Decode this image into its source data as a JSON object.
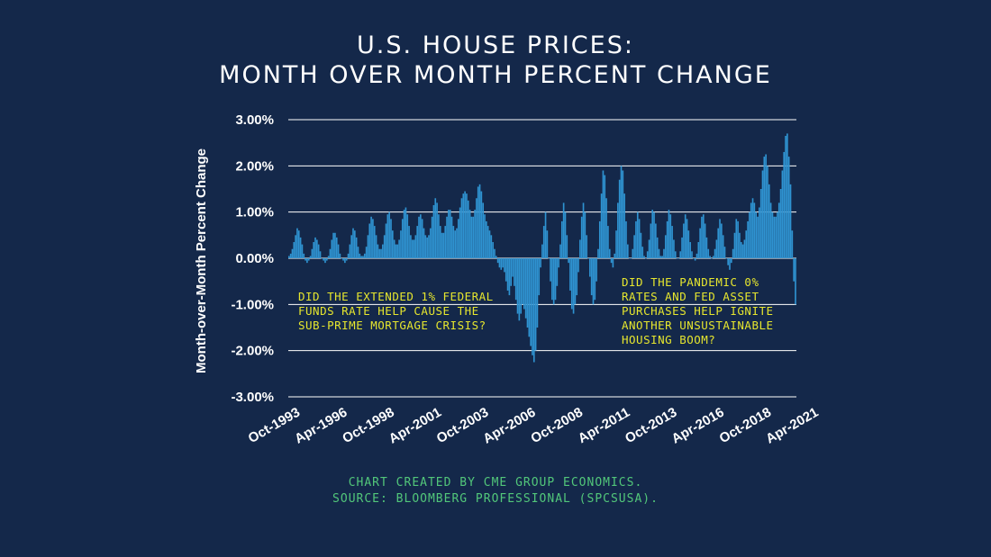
{
  "header": {
    "title_line1": "U.S. HOUSE PRICES:",
    "title_line2": "MONTH OVER MONTH PERCENT CHANGE"
  },
  "footer": {
    "credit_line1": "CHART CREATED BY CME GROUP ECONOMICS.",
    "credit_line2": "SOURCE: BLOOMBERG PROFESSIONAL (SPCSUSA)."
  },
  "colors": {
    "background": "#14284a",
    "bar": "#2f93d1",
    "grid": "#ffffff",
    "annotation": "#e6e62e",
    "credit": "#52c77a"
  },
  "chart_data": {
    "type": "bar",
    "title": "U.S. HOUSE PRICES: MONTH OVER MONTH PERCENT CHANGE",
    "xlabel": "",
    "ylabel": "Month-over-Month Percent Change",
    "ylim": [
      -3.0,
      3.0
    ],
    "y_ticks": [
      "3.00%",
      "2.00%",
      "1.00%",
      "0.00%",
      "-1.00%",
      "-2.00%",
      "-3.00%"
    ],
    "y_tick_values": [
      3,
      2,
      1,
      0,
      -1,
      -2,
      -3
    ],
    "x_tick_labels": [
      "Oct-1993",
      "Apr-1996",
      "Oct-1998",
      "Apr-2001",
      "Oct-2003",
      "Apr-2006",
      "Oct-2008",
      "Apr-2011",
      "Oct-2013",
      "Apr-2016",
      "Oct-2018",
      "Apr-2021"
    ],
    "x_start": "Oct-1993",
    "x_end": "Jan-2023",
    "grid": true,
    "legend": "none",
    "series": [
      {
        "values": [
          0.05,
          0.1,
          0.2,
          0.35,
          0.5,
          0.65,
          0.6,
          0.45,
          0.3,
          0.1,
          -0.05,
          -0.1,
          -0.05,
          0.05,
          0.2,
          0.35,
          0.45,
          0.4,
          0.3,
          0.15,
          0.0,
          -0.05,
          -0.1,
          -0.05,
          0.05,
          0.2,
          0.4,
          0.55,
          0.55,
          0.45,
          0.3,
          0.1,
          0.0,
          -0.05,
          -0.1,
          -0.05,
          0.1,
          0.3,
          0.5,
          0.65,
          0.6,
          0.45,
          0.25,
          0.1,
          0.05,
          0.05,
          0.1,
          0.25,
          0.5,
          0.75,
          0.9,
          0.85,
          0.7,
          0.5,
          0.3,
          0.2,
          0.2,
          0.3,
          0.5,
          0.75,
          0.95,
          1.0,
          0.85,
          0.6,
          0.4,
          0.3,
          0.3,
          0.4,
          0.6,
          0.85,
          1.05,
          1.1,
          0.95,
          0.7,
          0.5,
          0.4,
          0.4,
          0.5,
          0.7,
          0.9,
          0.95,
          0.85,
          0.65,
          0.5,
          0.45,
          0.5,
          0.65,
          0.9,
          1.15,
          1.3,
          1.2,
          0.95,
          0.7,
          0.55,
          0.55,
          0.7,
          0.9,
          1.05,
          1.05,
          0.9,
          0.7,
          0.6,
          0.65,
          0.85,
          1.1,
          1.3,
          1.4,
          1.45,
          1.4,
          1.25,
          1.05,
          0.9,
          0.9,
          1.05,
          1.3,
          1.55,
          1.6,
          1.45,
          1.2,
          0.95,
          0.8,
          0.7,
          0.6,
          0.5,
          0.35,
          0.2,
          0.05,
          -0.1,
          -0.2,
          -0.25,
          -0.2,
          -0.3,
          -0.5,
          -0.7,
          -0.8,
          -0.6,
          -0.4,
          -0.6,
          -0.9,
          -1.2,
          -1.35,
          -1.2,
          -1.0,
          -1.1,
          -1.3,
          -1.5,
          -1.7,
          -1.9,
          -2.1,
          -2.25,
          -2.0,
          -1.5,
          -0.8,
          -0.2,
          0.3,
          0.7,
          1.0,
          0.6,
          0.0,
          -0.5,
          -0.9,
          -1.0,
          -0.9,
          -0.6,
          -0.2,
          0.3,
          0.8,
          1.2,
          1.0,
          0.5,
          -0.1,
          -0.7,
          -1.1,
          -1.2,
          -1.0,
          -0.8,
          -0.3,
          0.4,
          0.9,
          1.2,
          1.0,
          0.5,
          0.0,
          -0.4,
          -0.8,
          -1.0,
          -0.9,
          -0.5,
          0.2,
          0.8,
          1.4,
          1.9,
          1.8,
          1.3,
          0.7,
          0.2,
          -0.1,
          -0.2,
          0.1,
          0.6,
          1.2,
          1.7,
          2.0,
          1.9,
          1.4,
          0.8,
          0.3,
          0.0,
          0.0,
          0.2,
          0.5,
          0.8,
          1.0,
          0.85,
          0.55,
          0.25,
          0.05,
          0.0,
          0.15,
          0.4,
          0.75,
          1.05,
          1.0,
          0.75,
          0.45,
          0.2,
          0.05,
          0.05,
          0.2,
          0.5,
          0.8,
          1.05,
          0.95,
          0.7,
          0.4,
          0.15,
          0.0,
          0.0,
          0.15,
          0.45,
          0.75,
          0.95,
          0.85,
          0.6,
          0.35,
          0.15,
          0.0,
          -0.05,
          0.1,
          0.35,
          0.65,
          0.9,
          0.95,
          0.75,
          0.45,
          0.2,
          0.05,
          0.0,
          0.05,
          0.2,
          0.4,
          0.65,
          0.85,
          0.75,
          0.5,
          0.25,
          0.0,
          -0.15,
          -0.25,
          -0.1,
          0.2,
          0.55,
          0.85,
          0.8,
          0.55,
          0.35,
          0.3,
          0.4,
          0.6,
          0.8,
          1.0,
          1.2,
          1.3,
          1.2,
          1.0,
          0.9,
          1.1,
          1.5,
          1.9,
          2.2,
          2.25,
          2.0,
          1.6,
          1.2,
          1.0,
          0.9,
          0.9,
          1.0,
          1.2,
          1.5,
          1.9,
          2.3,
          2.65,
          2.7,
          2.2,
          1.6,
          0.6,
          -0.5,
          -1.0
        ]
      }
    ],
    "annotations": [
      {
        "lines": [
          "DID THE EXTENDED 1% FEDERAL",
          "FUNDS RATE HELP CAUSE THE",
          "SUB-PRIME MORTGAGE CRISIS?"
        ]
      },
      {
        "lines": [
          "DID THE PANDEMIC 0%",
          "RATES AND FED ASSET",
          "PURCHASES HELP IGNITE",
          "ANOTHER UNSUSTAINABLE",
          "HOUSING BOOM?"
        ]
      }
    ]
  }
}
